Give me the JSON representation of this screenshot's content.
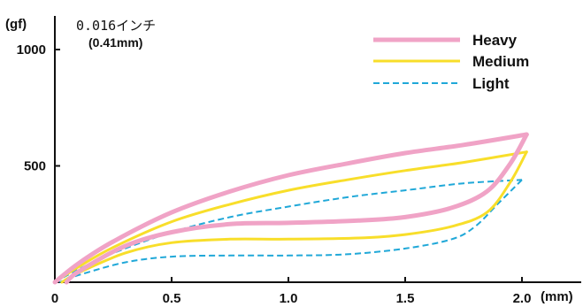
{
  "chart_data": {
    "type": "line",
    "title": "",
    "xlabel": "",
    "ylabel": "",
    "x_unit": "(mm)",
    "y_unit": "(gf)",
    "xlim": [
      0,
      2.25
    ],
    "ylim": [
      0,
      1150
    ],
    "x_ticks": [
      {
        "value": 0,
        "label": "0"
      },
      {
        "value": 0.5,
        "label": "0.5"
      },
      {
        "value": 1.0,
        "label": "1.0"
      },
      {
        "value": 1.5,
        "label": "1.5"
      },
      {
        "value": 2.0,
        "label": "2.0"
      }
    ],
    "y_ticks": [
      {
        "value": 500,
        "label": "500"
      },
      {
        "value": 1000,
        "label": "1000"
      }
    ],
    "annotations": [
      "0.016インチ",
      "(0.41mm)"
    ],
    "grid": false,
    "legend_position": "top-right",
    "series": [
      {
        "name": "Heavy",
        "color": "#f0a3c6",
        "style": "solid",
        "width": 5,
        "press": [
          [
            0,
            0
          ],
          [
            0.1,
            80
          ],
          [
            0.25,
            175
          ],
          [
            0.5,
            300
          ],
          [
            0.75,
            390
          ],
          [
            1.0,
            460
          ],
          [
            1.25,
            510
          ],
          [
            1.5,
            555
          ],
          [
            1.75,
            590
          ],
          [
            2.02,
            635
          ]
        ],
        "release": [
          [
            2.02,
            635
          ],
          [
            1.95,
            510
          ],
          [
            1.85,
            390
          ],
          [
            1.7,
            320
          ],
          [
            1.5,
            280
          ],
          [
            1.3,
            265
          ],
          [
            1.0,
            255
          ],
          [
            0.75,
            250
          ],
          [
            0.5,
            215
          ],
          [
            0.3,
            155
          ],
          [
            0.1,
            45
          ],
          [
            0.05,
            0
          ]
        ]
      },
      {
        "name": "Medium",
        "color": "#f8de2a",
        "style": "solid",
        "width": 3,
        "press": [
          [
            0,
            0
          ],
          [
            0.1,
            65
          ],
          [
            0.25,
            150
          ],
          [
            0.5,
            260
          ],
          [
            0.75,
            335
          ],
          [
            1.0,
            395
          ],
          [
            1.25,
            440
          ],
          [
            1.5,
            480
          ],
          [
            1.75,
            515
          ],
          [
            2.02,
            560
          ]
        ],
        "release": [
          [
            2.02,
            560
          ],
          [
            1.95,
            430
          ],
          [
            1.85,
            300
          ],
          [
            1.7,
            240
          ],
          [
            1.5,
            205
          ],
          [
            1.3,
            190
          ],
          [
            1.0,
            185
          ],
          [
            0.75,
            185
          ],
          [
            0.5,
            170
          ],
          [
            0.3,
            125
          ],
          [
            0.1,
            40
          ],
          [
            0.03,
            0
          ]
        ]
      },
      {
        "name": "Light",
        "color": "#20a8d8",
        "style": "dashed",
        "width": 2,
        "press": [
          [
            0,
            0
          ],
          [
            0.1,
            55
          ],
          [
            0.25,
            125
          ],
          [
            0.5,
            215
          ],
          [
            0.75,
            280
          ],
          [
            1.0,
            325
          ],
          [
            1.25,
            365
          ],
          [
            1.5,
            395
          ],
          [
            1.75,
            425
          ],
          [
            2.0,
            440
          ]
        ],
        "release": [
          [
            2.0,
            440
          ],
          [
            1.9,
            340
          ],
          [
            1.8,
            240
          ],
          [
            1.7,
            185
          ],
          [
            1.5,
            145
          ],
          [
            1.25,
            120
          ],
          [
            1.0,
            115
          ],
          [
            0.75,
            115
          ],
          [
            0.5,
            110
          ],
          [
            0.3,
            85
          ],
          [
            0.1,
            30
          ],
          [
            0.02,
            0
          ]
        ]
      }
    ]
  }
}
